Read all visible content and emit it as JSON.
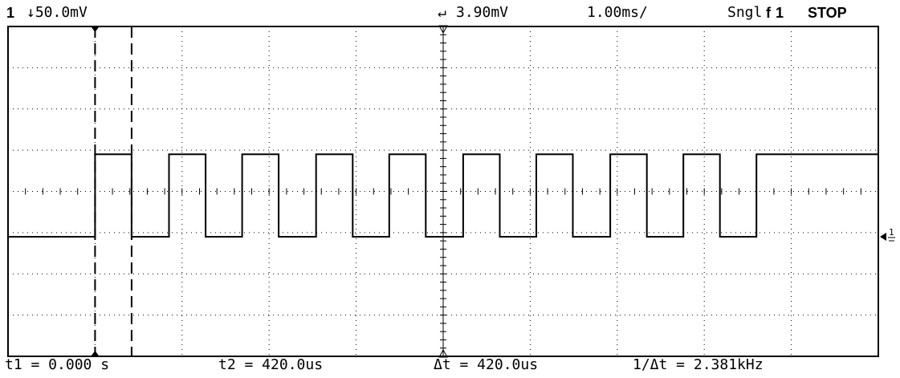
{
  "status_bar": {
    "channel": "1",
    "volts_per_div": "↓50.0mV",
    "trigger_level": "3.90mV",
    "time_per_div": "1.00ms/",
    "mode": "Sngl",
    "trigger_slope": "f",
    "trigger_source": "1",
    "run_state": "STOP"
  },
  "measurements": {
    "t1": "t1 = 0.000 s",
    "t2": "t2 = 420.0us",
    "delta_t": "Δt = 420.0us",
    "freq": "1/Δt = 2.381kHz"
  },
  "channel_marker": "1",
  "chart_data": {
    "type": "line",
    "title": "",
    "xlabel": "",
    "ylabel": "",
    "grid": true,
    "divisions": {
      "x": 10,
      "y": 8
    },
    "xlim": [
      0,
      10
    ],
    "ylim": [
      -4,
      4
    ],
    "series": [
      {
        "x": [
          0,
          1,
          1,
          1.42,
          1.42,
          1.85,
          1.85,
          2.27,
          2.27,
          2.69,
          2.69,
          3.11,
          3.11,
          3.54,
          3.54,
          3.96,
          3.96,
          4.38,
          4.38,
          4.8,
          4.8,
          5.23,
          5.23,
          5.65,
          5.65,
          6.07,
          6.07,
          6.49,
          6.49,
          6.92,
          6.92,
          7.34,
          7.34,
          7.76,
          7.76,
          8.18,
          8.18,
          8.6,
          8.6,
          10
        ],
        "y": [
          -1.1,
          -1.1,
          0.9,
          0.9,
          -1.1,
          -1.1,
          0.9,
          0.9,
          -1.1,
          -1.1,
          0.9,
          0.9,
          -1.1,
          -1.1,
          0.9,
          0.9,
          -1.1,
          -1.1,
          0.9,
          0.9,
          -1.1,
          -1.1,
          0.9,
          0.9,
          -1.1,
          -1.1,
          0.9,
          0.9,
          -1.1,
          -1.1,
          0.9,
          0.9,
          -1.1,
          -1.1,
          0.9,
          0.9,
          -1.1,
          -1.1,
          0.9,
          0.9
        ]
      }
    ],
    "cursors_x": [
      1.0,
      1.42
    ]
  }
}
